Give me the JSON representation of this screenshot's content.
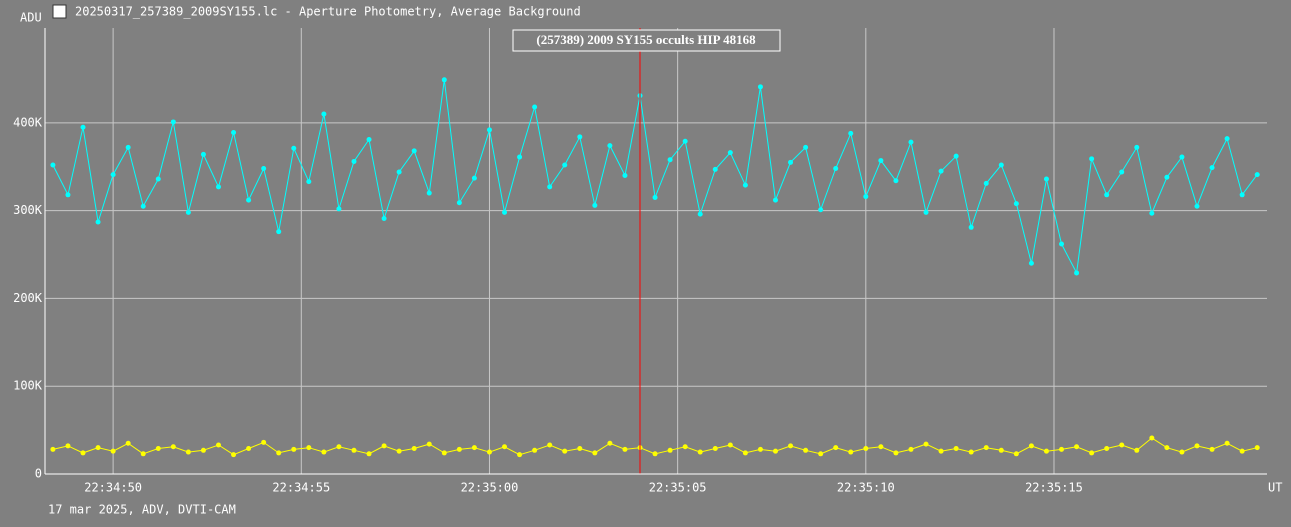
{
  "chart_data": {
    "type": "line",
    "title": "20250317_257389_2009SY155.lc - Aperture Photometry, Average Background",
    "y_label": "ADU",
    "x_label": "UT",
    "footer": "17 mar 2025, ADV, DVTI-CAM",
    "annotation": "(257389) 2009 SY155 occults HIP 48168",
    "grid": true,
    "xlim": [
      48.19,
      80.66
    ],
    "xticks": [
      {
        "value": 50,
        "label": "22:34:50"
      },
      {
        "value": 55,
        "label": "22:34:55"
      },
      {
        "value": 60,
        "label": "22:35:00"
      },
      {
        "value": 65,
        "label": "22:35:05"
      },
      {
        "value": 70,
        "label": "22:35:10"
      },
      {
        "value": 75,
        "label": "22:35:15"
      }
    ],
    "ylim": [
      0,
      508000
    ],
    "yticks": [
      {
        "value": 0,
        "label": "0"
      },
      {
        "value": 100000,
        "label": "100K"
      },
      {
        "value": 200000,
        "label": "200K"
      },
      {
        "value": 300000,
        "label": "300K"
      },
      {
        "value": 400000,
        "label": "400K"
      }
    ],
    "markers": [
      {
        "x": 64.0,
        "color": "#ff0000"
      }
    ],
    "x": [
      48.4,
      48.8,
      49.2,
      49.6,
      50.0,
      50.4,
      50.8,
      51.2,
      51.6,
      52.0,
      52.4,
      52.8,
      53.2,
      53.6,
      54.0,
      54.4,
      54.8,
      55.2,
      55.6,
      56.0,
      56.4,
      56.8,
      57.2,
      57.6,
      58.0,
      58.4,
      58.8,
      59.2,
      59.6,
      60.0,
      60.4,
      60.8,
      61.2,
      61.6,
      62.0,
      62.4,
      62.8,
      63.2,
      63.6,
      64.0,
      64.4,
      64.8,
      65.2,
      65.6,
      66.0,
      66.4,
      66.8,
      67.2,
      67.6,
      68.0,
      68.4,
      68.8,
      69.2,
      69.6,
      70.0,
      70.4,
      70.8,
      71.2,
      71.6,
      72.0,
      72.4,
      72.8,
      73.2,
      73.6,
      74.0,
      74.4,
      74.8,
      75.2,
      75.6,
      76.0,
      76.4,
      76.8,
      77.2,
      77.6,
      78.0,
      78.4,
      78.8,
      79.2,
      79.6,
      80.0,
      80.4
    ],
    "series": [
      {
        "color": "#00ffff",
        "values": [
          352000,
          318000,
          395000,
          287000,
          341000,
          372000,
          305000,
          336000,
          401000,
          298000,
          364000,
          327000,
          389000,
          312000,
          348000,
          276000,
          371000,
          333000,
          410000,
          302000,
          356000,
          381000,
          291000,
          344000,
          368000,
          320000,
          449000,
          309000,
          337000,
          392000,
          298000,
          361000,
          418000,
          327000,
          352000,
          384000,
          306000,
          374000,
          340000,
          431000,
          315000,
          358000,
          379000,
          296000,
          347000,
          366000,
          329000,
          441000,
          312000,
          355000,
          372000,
          301000,
          348000,
          388000,
          316000,
          357000,
          334000,
          378000,
          298000,
          345000,
          362000,
          281000,
          331000,
          352000,
          308000,
          240000,
          336000,
          262000,
          229000,
          359000,
          318000,
          344000,
          372000,
          297000,
          338000,
          361000,
          305000,
          349000,
          382000,
          318000,
          341000
        ]
      },
      {
        "color": "#ffff00",
        "values": [
          28000,
          32000,
          24000,
          30000,
          26000,
          35000,
          23000,
          29000,
          31000,
          25000,
          27000,
          33000,
          22000,
          29000,
          36000,
          24000,
          28000,
          30000,
          25000,
          31000,
          27000,
          23000,
          32000,
          26000,
          29000,
          34000,
          24000,
          28000,
          30000,
          25000,
          31000,
          22000,
          27000,
          33000,
          26000,
          29000,
          24000,
          35000,
          28000,
          30000,
          23000,
          27000,
          31000,
          25000,
          29000,
          33000,
          24000,
          28000,
          26000,
          32000,
          27000,
          23000,
          30000,
          25000,
          29000,
          31000,
          24000,
          28000,
          34000,
          26000,
          29000,
          25000,
          30000,
          27000,
          23000,
          32000,
          26000,
          28000,
          31000,
          24000,
          29000,
          33000,
          27000,
          41000,
          30000,
          25000,
          32000,
          28000,
          35000,
          26000,
          30000
        ]
      }
    ]
  }
}
